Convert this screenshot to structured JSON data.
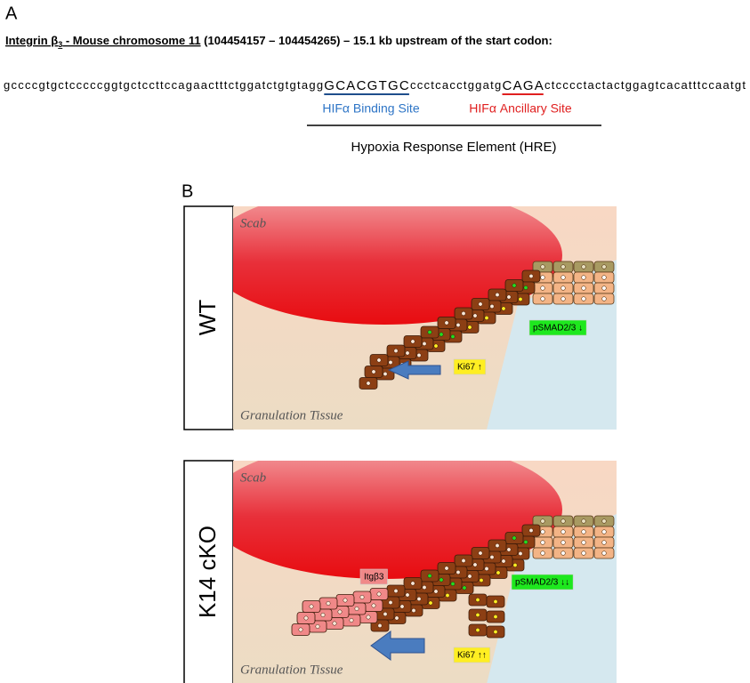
{
  "panel_a": {
    "label": "A",
    "title": {
      "gene": "Integrin β",
      "subscript": "3",
      "location": " - Mouse chromosome 11",
      "detail": " (104454157 – 104454265) – 15.1 kb upstream of the start codon:"
    },
    "sequence": {
      "before": "gccccgtgctcccccggtgctccttccagaactttctggatctgtgtagg",
      "binding": "GCACGTGC",
      "middle": "ccctcacctggatg",
      "ancillary": "CAGA",
      "after": "ctcccctactactggagtcacatttccaatgt"
    },
    "binding_label": "HIFα Binding Site",
    "ancillary_label": "HIFα Ancillary Site",
    "hre_label": "Hypoxia Response Element (HRE)"
  },
  "panel_b": {
    "label": "B",
    "panels": [
      {
        "genotype": "WT",
        "scab": "Scab",
        "tissue": "Granulation Tissue",
        "psmad": "pSMAD2/3 ↓",
        "ki67": "Ki67 ↑"
      },
      {
        "genotype": "K14 cKO",
        "scab": "Scab",
        "tissue": "Granulation Tissue",
        "psmad": "pSMAD2/3 ↓↓",
        "ki67": "Ki67 ↑↑",
        "itgb3": "Itgβ3"
      }
    ]
  }
}
